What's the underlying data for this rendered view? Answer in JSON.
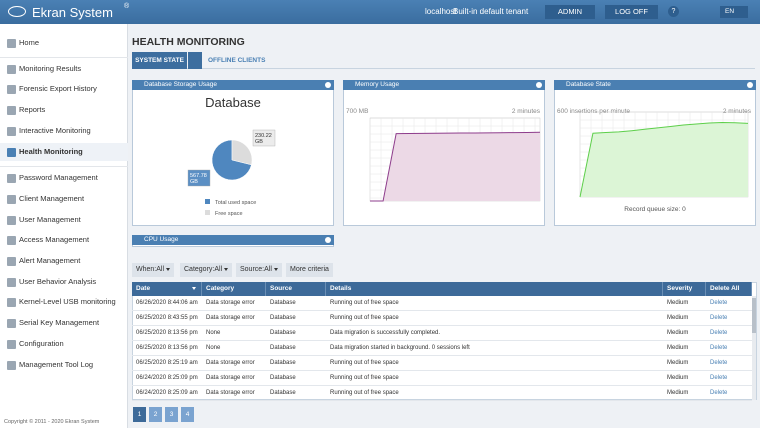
{
  "header": {
    "brand": "Ekran System",
    "brand_mark": "®",
    "host": "localhost",
    "tenant": "Built-in default tenant",
    "user_button": "ADMIN",
    "logoff_button": "LOG OFF",
    "help": "?",
    "language": "EN"
  },
  "sidebar": {
    "items": [
      {
        "label": "Home"
      },
      {
        "label": "Monitoring Results"
      },
      {
        "label": "Forensic Export History"
      },
      {
        "label": "Reports"
      },
      {
        "label": "Interactive Monitoring"
      },
      {
        "label": "Health Monitoring",
        "selected": true
      },
      {
        "label": "Password Management"
      },
      {
        "label": "Client Management"
      },
      {
        "label": "User Management"
      },
      {
        "label": "Access Management"
      },
      {
        "label": "Alert Management"
      },
      {
        "label": "User Behavior Analysis"
      },
      {
        "label": "Kernel-Level USB monitoring"
      },
      {
        "label": "Serial Key Management"
      },
      {
        "label": "Configuration"
      },
      {
        "label": "Management Tool Log"
      }
    ],
    "copyright": "Copyright © 2011 - 2020 Ekran System"
  },
  "main": {
    "title": "HEALTH MONITORING",
    "tabs": [
      {
        "label": "SYSTEM STATE",
        "active": true
      },
      {
        "label": "OFFLINE CLIENTS"
      }
    ]
  },
  "storage_widget": {
    "title": "Database Storage Usage",
    "chart_title": "Database",
    "slices": [
      {
        "name": "Total used space",
        "value": 567.78,
        "label": "567.78 GB",
        "color": "#4f87bf"
      },
      {
        "name": "Free space",
        "value": 230.22,
        "label": "230.22 GB",
        "color": "#dcdcdc"
      }
    ]
  },
  "memory_widget": {
    "title": "Memory Usage",
    "ylim": [
      0,
      700
    ],
    "yticks": [
      {
        "value": 700,
        "label": "700 MB"
      }
    ],
    "time_label": "2 minutes",
    "color": "#8e3d8c",
    "fill": "#ecd9e6",
    "values": [
      0,
      0,
      568,
      569,
      570,
      571,
      572,
      573,
      574,
      575,
      576,
      577,
      578,
      580
    ]
  },
  "db_state_widget": {
    "title": "Database State",
    "ylim": [
      0,
      600
    ],
    "yticks": [
      {
        "value": 600,
        "label": "600 insertions per minute"
      }
    ],
    "time_label": "2 minutes",
    "color": "#5dcf4a",
    "fill": "#dcf5d6",
    "values": [
      0,
      450,
      455,
      460,
      468,
      478,
      488,
      498,
      508,
      515,
      522,
      526,
      524,
      520
    ],
    "footer": "Record queue size: 0"
  },
  "cpu_widget": {
    "title": "CPU Usage"
  },
  "filters": [
    {
      "label": "When:",
      "value": "All"
    },
    {
      "label": "Category:",
      "value": "All"
    },
    {
      "label": "Source:",
      "value": "All"
    }
  ],
  "more_criteria": "More criteria",
  "table": {
    "columns": [
      "Date",
      "Category",
      "Source",
      "Details",
      "Severity",
      "Delete All"
    ],
    "rows": [
      [
        "06/26/2020 8:44:06 am",
        "Data storage error",
        "Database",
        "Running out of free space",
        "Medium",
        "Delete"
      ],
      [
        "06/25/2020 8:43:55 pm",
        "Data storage error",
        "Database",
        "Running out of free space",
        "Medium",
        "Delete"
      ],
      [
        "06/25/2020 8:13:56 pm",
        "None",
        "Database",
        "Data migration is successfully completed.",
        "Medium",
        "Delete"
      ],
      [
        "06/25/2020 8:13:56 pm",
        "None",
        "Database",
        "Data migration started in background. 0 sessions left",
        "Medium",
        "Delete"
      ],
      [
        "06/25/2020 8:25:19 am",
        "Data storage error",
        "Database",
        "Running out of free space",
        "Medium",
        "Delete"
      ],
      [
        "06/24/2020 8:25:09 pm",
        "Data storage error",
        "Database",
        "Running out of free space",
        "Medium",
        "Delete"
      ],
      [
        "06/24/2020 8:25:09 am",
        "Data storage error",
        "Database",
        "Running out of free space",
        "Medium",
        "Delete"
      ]
    ]
  },
  "pagination": [
    1,
    2,
    3,
    4
  ]
}
